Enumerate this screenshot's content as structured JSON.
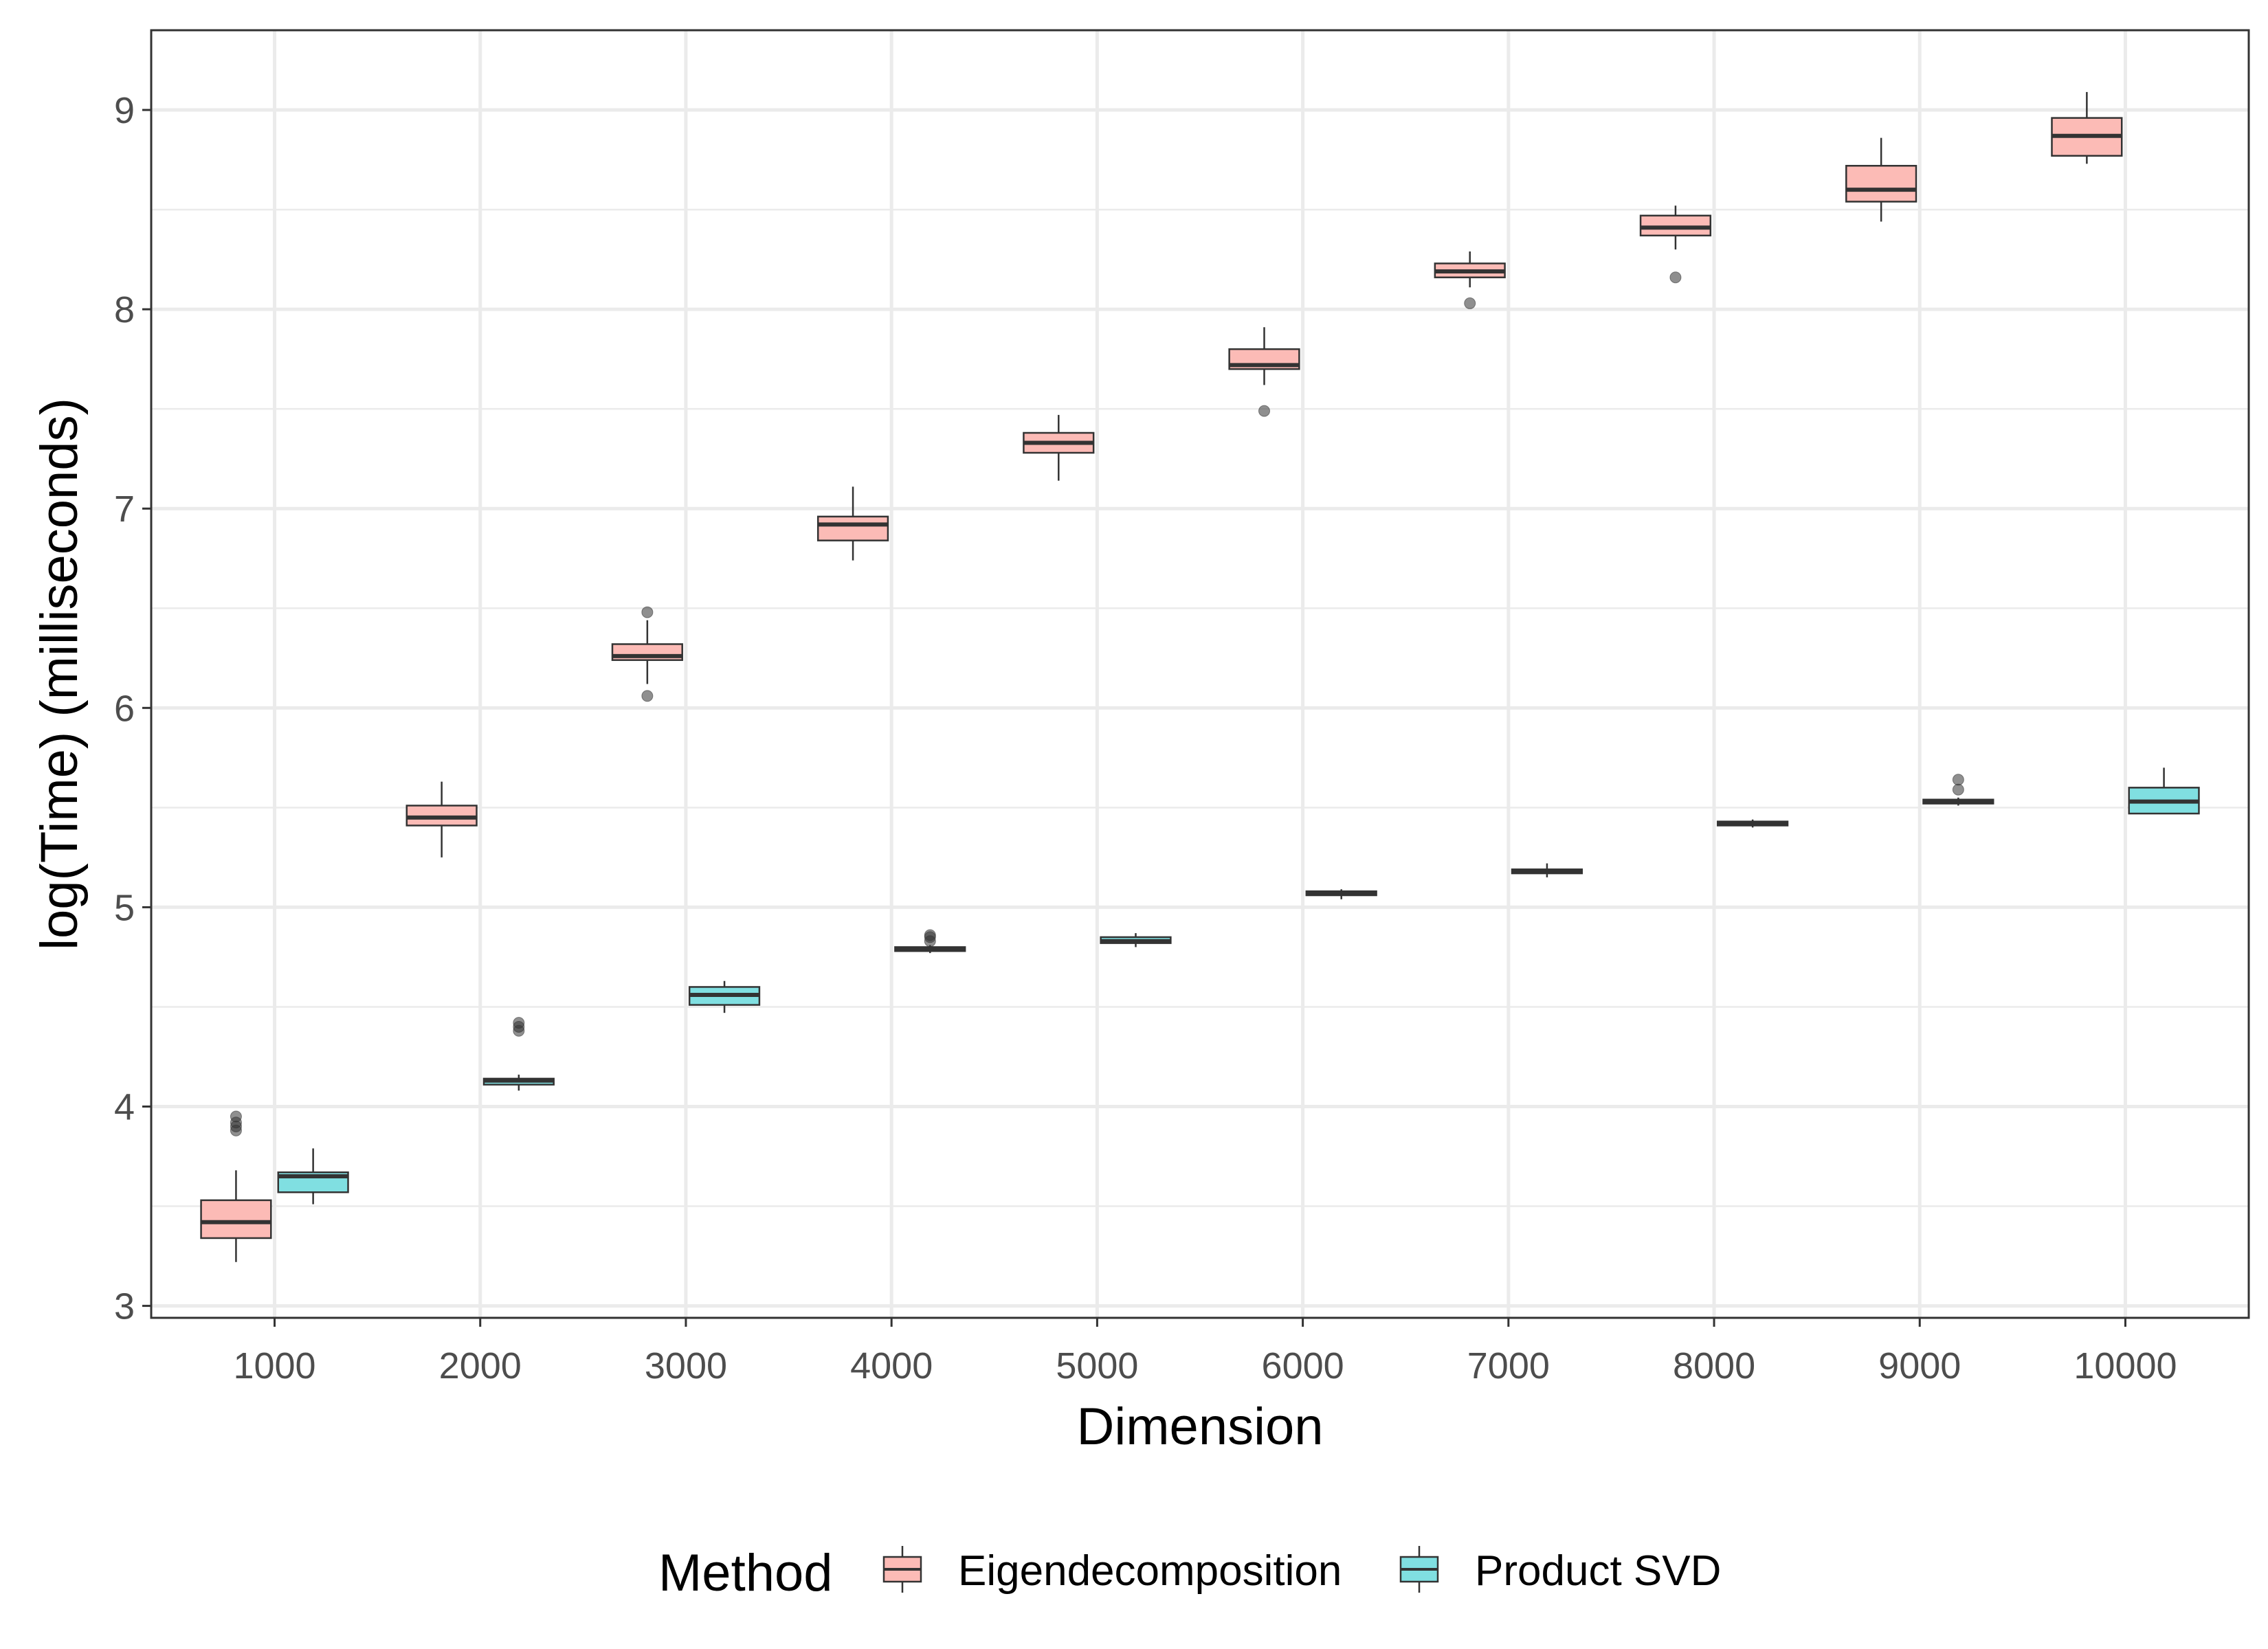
{
  "chart_data": {
    "type": "box",
    "xlabel": "Dimension",
    "ylabel": "log(Time) (milliseconds)",
    "categories": [
      "1000",
      "2000",
      "3000",
      "4000",
      "5000",
      "6000",
      "7000",
      "8000",
      "9000",
      "10000"
    ],
    "ylim": [
      2.94,
      9.4
    ],
    "yticks": [
      "3",
      "4",
      "5",
      "6",
      "7",
      "8",
      "9"
    ],
    "grid": true,
    "legend": {
      "title": "Method",
      "position": "bottom"
    },
    "series": [
      {
        "name": "Eigendecomposition",
        "color": "#F8766D",
        "fill": "#FCBBB6",
        "boxes": [
          {
            "min": 3.22,
            "q1": 3.34,
            "median": 3.42,
            "q3": 3.53,
            "max": 3.68,
            "outliers": [
              3.88,
              3.9,
              3.92,
              3.95
            ]
          },
          {
            "min": 5.25,
            "q1": 5.41,
            "median": 5.45,
            "q3": 5.51,
            "max": 5.63,
            "outliers": []
          },
          {
            "min": 6.12,
            "q1": 6.24,
            "median": 6.26,
            "q3": 6.32,
            "max": 6.44,
            "outliers": [
              6.06,
              6.48
            ]
          },
          {
            "min": 6.74,
            "q1": 6.84,
            "median": 6.92,
            "q3": 6.96,
            "max": 7.11,
            "outliers": []
          },
          {
            "min": 7.14,
            "q1": 7.28,
            "median": 7.33,
            "q3": 7.38,
            "max": 7.47,
            "outliers": []
          },
          {
            "min": 7.62,
            "q1": 7.7,
            "median": 7.72,
            "q3": 7.8,
            "max": 7.91,
            "outliers": [
              7.49
            ]
          },
          {
            "min": 8.11,
            "q1": 8.16,
            "median": 8.19,
            "q3": 8.23,
            "max": 8.29,
            "outliers": [
              8.03
            ]
          },
          {
            "min": 8.3,
            "q1": 8.37,
            "median": 8.41,
            "q3": 8.47,
            "max": 8.52,
            "outliers": [
              8.16
            ]
          },
          {
            "min": 8.44,
            "q1": 8.54,
            "median": 8.6,
            "q3": 8.72,
            "max": 8.86,
            "outliers": []
          },
          {
            "min": 8.73,
            "q1": 8.77,
            "median": 8.87,
            "q3": 8.96,
            "max": 9.09,
            "outliers": []
          }
        ]
      },
      {
        "name": "Product SVD",
        "color": "#00BFC4",
        "fill": "#80DFE1",
        "boxes": [
          {
            "min": 3.51,
            "q1": 3.57,
            "median": 3.65,
            "q3": 3.67,
            "max": 3.79,
            "outliers": []
          },
          {
            "min": 4.08,
            "q1": 4.11,
            "median": 4.13,
            "q3": 4.14,
            "max": 4.16,
            "outliers": [
              4.38,
              4.4,
              4.42
            ]
          },
          {
            "min": 4.47,
            "q1": 4.51,
            "median": 4.56,
            "q3": 4.6,
            "max": 4.63,
            "outliers": []
          },
          {
            "min": 4.77,
            "q1": 4.78,
            "median": 4.79,
            "q3": 4.8,
            "max": 4.81,
            "outliers": [
              4.83,
              4.85,
              4.86
            ]
          },
          {
            "min": 4.8,
            "q1": 4.82,
            "median": 4.83,
            "q3": 4.85,
            "max": 4.87,
            "outliers": []
          },
          {
            "min": 5.04,
            "q1": 5.06,
            "median": 5.07,
            "q3": 5.08,
            "max": 5.09,
            "outliers": []
          },
          {
            "min": 5.15,
            "q1": 5.17,
            "median": 5.18,
            "q3": 5.19,
            "max": 5.22,
            "outliers": []
          },
          {
            "min": 5.4,
            "q1": 5.41,
            "median": 5.42,
            "q3": 5.43,
            "max": 5.44,
            "outliers": []
          },
          {
            "min": 5.51,
            "q1": 5.52,
            "median": 5.53,
            "q3": 5.54,
            "max": 5.55,
            "outliers": [
              5.59,
              5.64
            ]
          },
          {
            "min": 5.47,
            "q1": 5.47,
            "median": 5.53,
            "q3": 5.6,
            "max": 5.7,
            "outliers": []
          }
        ]
      }
    ]
  }
}
